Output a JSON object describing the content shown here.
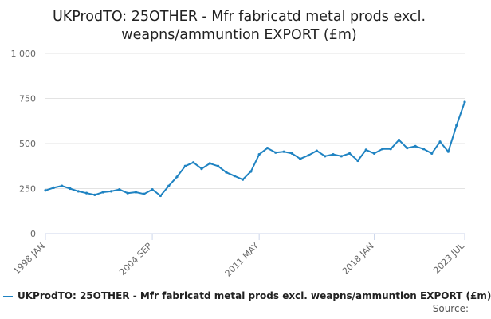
{
  "chart_data": {
    "type": "line",
    "title_line1": "UKProdTO: 25OTHER - Mfr fabricatd metal prods excl.",
    "title_line2": "weapns/ammuntion EXPORT (£m)",
    "xlabel": "",
    "ylabel": "",
    "ylim": [
      0,
      1000
    ],
    "yticks": [
      0,
      250,
      500,
      750,
      1000
    ],
    "ytick_labels": [
      "0",
      "250",
      "500",
      "750",
      "1 000"
    ],
    "xticks": [
      "1998 JAN",
      "2004 SEP",
      "2011 MAY",
      "2018 JAN",
      "2023 JUL"
    ],
    "grid": "horizontal",
    "legend_position": "bottom",
    "series": [
      {
        "name": "UKProdTO: 25OTHER - Mfr fabricatd metal prods excl. weapns/ammuntion EXPORT (£m)",
        "color": "#1f83c2",
        "x": [
          "1998 JAN",
          "1998 JUL",
          "1999 JAN",
          "1999 JUL",
          "2000 JAN",
          "2000 JUL",
          "2001 JAN",
          "2001 JUL",
          "2002 JAN",
          "2002 JUL",
          "2003 JAN",
          "2003 JUL",
          "2004 JAN",
          "2004 SEP",
          "2005 JAN",
          "2005 JUL",
          "2006 JAN",
          "2006 JUL",
          "2007 JAN",
          "2007 JUL",
          "2008 JAN",
          "2008 JUL",
          "2009 JAN",
          "2009 JUL",
          "2010 JAN",
          "2010 JUL",
          "2011 MAY",
          "2011 JUL",
          "2012 JAN",
          "2012 JUL",
          "2013 JAN",
          "2013 JUL",
          "2014 JAN",
          "2014 JUL",
          "2015 JAN",
          "2015 JUL",
          "2016 JAN",
          "2016 JUL",
          "2017 JAN",
          "2017 JUL",
          "2018 JAN",
          "2018 JUL",
          "2019 JAN",
          "2019 JUL",
          "2020 JAN",
          "2020 JUL",
          "2021 JAN",
          "2021 JUL",
          "2022 JAN",
          "2022 JUL",
          "2023 JAN",
          "2023 JUL"
        ],
        "values": [
          240,
          255,
          265,
          250,
          235,
          225,
          215,
          230,
          235,
          245,
          225,
          230,
          220,
          245,
          210,
          265,
          315,
          375,
          395,
          360,
          390,
          375,
          340,
          320,
          300,
          345,
          440,
          475,
          450,
          455,
          445,
          415,
          435,
          460,
          430,
          440,
          430,
          445,
          405,
          465,
          445,
          470,
          470,
          520,
          475,
          485,
          470,
          445,
          510,
          455,
          600,
          730
        ]
      }
    ]
  },
  "legend": {
    "label": "UKProdTO: 25OTHER - Mfr fabricatd metal prods excl. weapns/ammuntion EXPORT (£m)"
  },
  "source": {
    "label": "Source:"
  }
}
